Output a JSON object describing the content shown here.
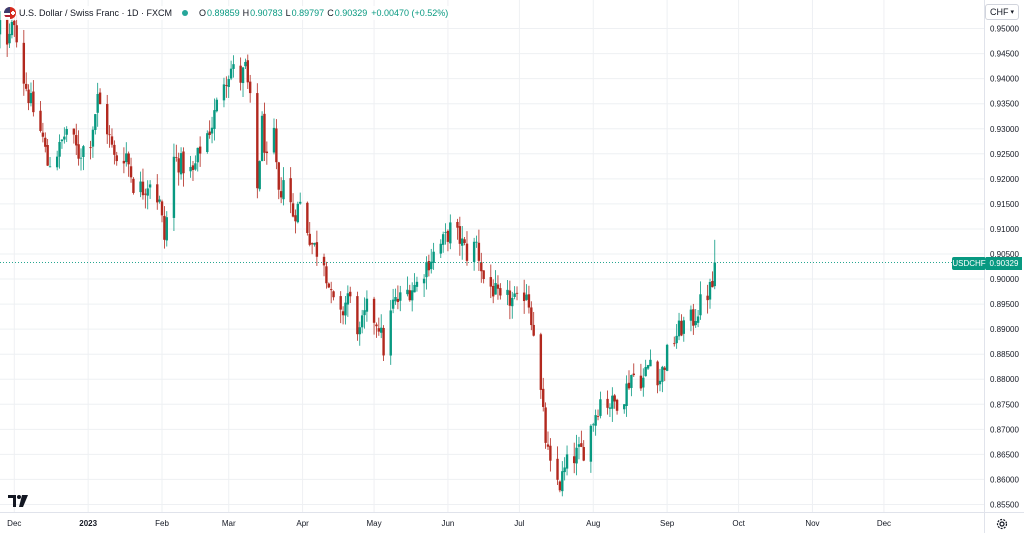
{
  "legend": {
    "symbol": "U.S. Dollar / Swiss Franc · 1D · FXCM",
    "open_label": "O",
    "open_value": "0.89859",
    "high_label": "H",
    "high_value": "0.90783",
    "low_label": "L",
    "low_value": "0.89797",
    "close_label": "C",
    "close_value": "0.90329",
    "change": "+0.00470 (+0.52%)"
  },
  "currency_button": {
    "label": "CHF"
  },
  "last_price": {
    "label": "USDCHF",
    "value": "0.90329"
  },
  "colors": {
    "up": "#089981",
    "down": "#b2281e",
    "grid": "#eef0f3",
    "axis_text": "#131722"
  },
  "chart_data": {
    "type": "candlestick",
    "title": "U.S. Dollar / Swiss Franc · 1D · FXCM",
    "interval": "1D",
    "ylim": [
      0.8535,
      0.9557
    ],
    "y_ticks": [
      "0.95000",
      "0.94500",
      "0.94000",
      "0.93500",
      "0.93000",
      "0.92500",
      "0.92000",
      "0.91500",
      "0.91000",
      "0.90500",
      "0.90000",
      "0.89500",
      "0.89000",
      "0.88500",
      "0.88000",
      "0.87500",
      "0.87000",
      "0.86500",
      "0.86000",
      "0.85500"
    ],
    "x_ticks": [
      "Dec",
      "2023",
      "Feb",
      "Mar",
      "Apr",
      "May",
      "Jun",
      "Jul",
      "Aug",
      "Sep",
      "Oct",
      "Nov",
      "Dec"
    ],
    "x_tick_dates": [
      "2022-12-01",
      "2023-01-01",
      "2023-02-01",
      "2023-03-01",
      "2023-04-01",
      "2023-05-01",
      "2023-06-01",
      "2023-07-01",
      "2023-08-01",
      "2023-09-01",
      "2023-10-01",
      "2023-11-01",
      "2023-12-01"
    ],
    "x_range": [
      "2022-11-25",
      "2024-01-12"
    ],
    "anchors": [
      [
        "2022-11-25",
        0.951
      ],
      [
        "2022-11-28",
        0.946
      ],
      [
        "2022-12-01",
        0.952
      ],
      [
        "2022-12-05",
        0.94
      ],
      [
        "2022-12-08",
        0.935
      ],
      [
        "2022-12-13",
        0.928
      ],
      [
        "2022-12-15",
        0.923
      ],
      [
        "2022-12-20",
        0.926
      ],
      [
        "2022-12-23",
        0.93
      ],
      [
        "2022-12-28",
        0.925
      ],
      [
        "2023-01-02",
        0.928
      ],
      [
        "2023-01-05",
        0.936
      ],
      [
        "2023-01-09",
        0.93
      ],
      [
        "2023-01-12",
        0.924
      ],
      [
        "2023-01-17",
        0.925
      ],
      [
        "2023-01-20",
        0.919
      ],
      [
        "2023-01-24",
        0.918
      ],
      [
        "2023-01-27",
        0.92
      ],
      [
        "2023-01-31",
        0.915
      ],
      [
        "2023-02-02",
        0.908
      ],
      [
        "2023-02-06",
        0.924
      ],
      [
        "2023-02-09",
        0.923
      ],
      [
        "2023-02-14",
        0.921
      ],
      [
        "2023-02-17",
        0.926
      ],
      [
        "2023-02-22",
        0.931
      ],
      [
        "2023-02-27",
        0.94
      ],
      [
        "2023-03-02",
        0.942
      ],
      [
        "2023-03-06",
        0.94
      ],
      [
        "2023-03-08",
        0.942
      ],
      [
        "2023-03-10",
        0.935
      ],
      [
        "2023-03-13",
        0.918
      ],
      [
        "2023-03-15",
        0.931
      ],
      [
        "2023-03-17",
        0.923
      ],
      [
        "2023-03-20",
        0.928
      ],
      [
        "2023-03-22",
        0.916
      ],
      [
        "2023-03-24",
        0.92
      ],
      [
        "2023-03-28",
        0.913
      ],
      [
        "2023-03-31",
        0.915
      ],
      [
        "2023-04-05",
        0.907
      ],
      [
        "2023-04-10",
        0.904
      ],
      [
        "2023-04-13",
        0.896
      ],
      [
        "2023-04-17",
        0.892
      ],
      [
        "2023-04-20",
        0.897
      ],
      [
        "2023-04-25",
        0.889
      ],
      [
        "2023-04-28",
        0.894
      ],
      [
        "2023-05-03",
        0.891
      ],
      [
        "2023-05-05",
        0.886
      ],
      [
        "2023-05-09",
        0.895
      ],
      [
        "2023-05-12",
        0.896
      ],
      [
        "2023-05-16",
        0.898
      ],
      [
        "2023-05-19",
        0.899
      ],
      [
        "2023-05-23",
        0.903
      ],
      [
        "2023-05-26",
        0.905
      ],
      [
        "2023-05-31",
        0.908
      ],
      [
        "2023-06-02",
        0.91
      ],
      [
        "2023-06-06",
        0.908
      ],
      [
        "2023-06-09",
        0.905
      ],
      [
        "2023-06-13",
        0.907
      ],
      [
        "2023-06-16",
        0.9
      ],
      [
        "2023-06-20",
        0.898
      ],
      [
        "2023-06-23",
        0.895
      ],
      [
        "2023-06-27",
        0.896
      ],
      [
        "2023-06-30",
        0.895
      ],
      [
        "2023-07-04",
        0.898
      ],
      [
        "2023-07-07",
        0.89
      ],
      [
        "2023-07-10",
        0.877
      ],
      [
        "2023-07-12",
        0.868
      ],
      [
        "2023-07-14",
        0.862
      ],
      [
        "2023-07-18",
        0.859
      ],
      [
        "2023-07-21",
        0.863
      ],
      [
        "2023-07-25",
        0.865
      ],
      [
        "2023-07-28",
        0.866
      ],
      [
        "2023-08-01",
        0.872
      ],
      [
        "2023-08-04",
        0.876
      ],
      [
        "2023-08-09",
        0.875
      ],
      [
        "2023-08-14",
        0.877
      ],
      [
        "2023-08-17",
        0.881
      ],
      [
        "2023-08-22",
        0.88
      ],
      [
        "2023-08-25",
        0.884
      ],
      [
        "2023-08-29",
        0.88
      ],
      [
        "2023-09-01",
        0.885
      ],
      [
        "2023-09-05",
        0.889
      ],
      [
        "2023-09-08",
        0.891
      ],
      [
        "2023-09-12",
        0.892
      ],
      [
        "2023-09-15",
        0.895
      ],
      [
        "2023-09-20",
        0.8986
      ],
      [
        "2023-09-21",
        0.9033
      ]
    ],
    "last_candle": {
      "date": "2023-09-21",
      "open": 0.89859,
      "high": 0.90783,
      "low": 0.89797,
      "close": 0.90329
    },
    "last_price": 0.90329
  }
}
